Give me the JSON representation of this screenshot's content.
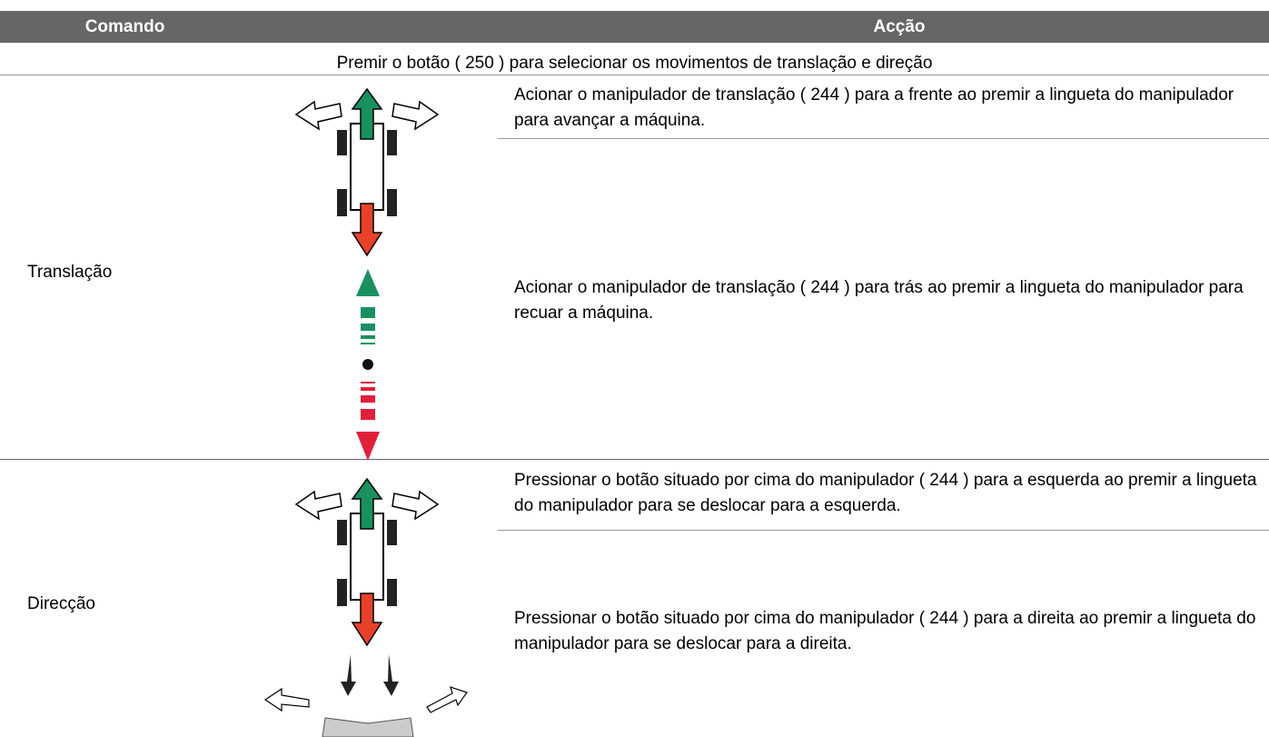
{
  "table": {
    "header": [
      "Comando",
      "Acção"
    ],
    "note": "Premir o botão ( 250 ) para selecionar os movimentos de translação e direção",
    "rows": [
      {
        "command": "Translação",
        "actions": [
          "Acionar o manipulador de translação ( 244 ) para a frente ao premir a lingueta do manipulador para avançar a máquina.",
          "Acionar o manipulador de translação ( 244 ) para trás ao premir a lingueta do manipulador para recuar a máquina."
        ]
      },
      {
        "command": "Direcção",
        "actions": [
          "Pressionar o botão situado por cima do manipulador ( 244 ) para a esquerda ao premir a lingueta do manipulador para se deslocar para a esquerda.",
          "Pressionar o botão situado por cima do manipulador ( 244 ) para a direita ao premir a lingueta do manipulador para se deslocar para a direita."
        ]
      }
    ]
  }
}
